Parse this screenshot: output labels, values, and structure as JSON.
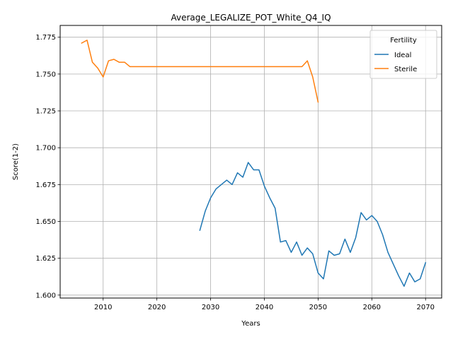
{
  "chart_data": {
    "type": "line",
    "title": "Average_LEGALIZE_POT_White_Q4_IQ",
    "xlabel": "Years",
    "ylabel": "Score(1-2)",
    "xlim": [
      2002,
      2073
    ],
    "ylim": [
      1.598,
      1.783
    ],
    "x_ticks": [
      2010,
      2020,
      2030,
      2040,
      2050,
      2060,
      2070
    ],
    "x_tick_labels": [
      "2010",
      "2020",
      "2030",
      "2040",
      "2050",
      "2060",
      "2070"
    ],
    "y_ticks": [
      1.6,
      1.625,
      1.65,
      1.675,
      1.7,
      1.725,
      1.75,
      1.775
    ],
    "y_tick_labels": [
      "1.600",
      "1.625",
      "1.650",
      "1.675",
      "1.700",
      "1.725",
      "1.750",
      "1.775"
    ],
    "grid": true,
    "legend": {
      "title": "Fertility",
      "placement": "top-right"
    },
    "series": [
      {
        "name": "Ideal",
        "color": "#1f77b4",
        "x": [
          2028,
          2029,
          2030,
          2031,
          2032,
          2033,
          2034,
          2035,
          2036,
          2037,
          2038,
          2039,
          2040,
          2041,
          2042,
          2043,
          2044,
          2045,
          2046,
          2047,
          2048,
          2049,
          2050,
          2051,
          2052,
          2053,
          2054,
          2055,
          2056,
          2057,
          2058,
          2059,
          2060,
          2061,
          2062,
          2063,
          2064,
          2065,
          2066,
          2067,
          2068,
          2069,
          2070
        ],
        "values": [
          1.644,
          1.657,
          1.666,
          1.672,
          1.675,
          1.678,
          1.675,
          1.683,
          1.68,
          1.69,
          1.685,
          1.685,
          1.674,
          1.666,
          1.659,
          1.636,
          1.637,
          1.629,
          1.636,
          1.627,
          1.632,
          1.628,
          1.615,
          1.611,
          1.63,
          1.627,
          1.628,
          1.638,
          1.629,
          1.639,
          1.656,
          1.651,
          1.654,
          1.65,
          1.641,
          1.629,
          1.621,
          1.613,
          1.606,
          1.615,
          1.609,
          1.611,
          1.622
        ]
      },
      {
        "name": "Sterile",
        "color": "#ff7f0e",
        "x": [
          2006,
          2007,
          2008,
          2009,
          2010,
          2011,
          2012,
          2013,
          2014,
          2015,
          2016,
          2017,
          2018,
          2019,
          2020,
          2021,
          2022,
          2023,
          2024,
          2025,
          2026,
          2027,
          2028,
          2029,
          2030,
          2031,
          2032,
          2033,
          2034,
          2035,
          2036,
          2037,
          2038,
          2039,
          2040,
          2041,
          2042,
          2043,
          2044,
          2045,
          2046,
          2047,
          2048,
          2049,
          2050
        ],
        "values": [
          1.771,
          1.773,
          1.758,
          1.754,
          1.748,
          1.759,
          1.76,
          1.758,
          1.758,
          1.755,
          1.755,
          1.755,
          1.755,
          1.755,
          1.755,
          1.755,
          1.755,
          1.755,
          1.755,
          1.755,
          1.755,
          1.755,
          1.755,
          1.755,
          1.755,
          1.755,
          1.755,
          1.755,
          1.755,
          1.755,
          1.755,
          1.755,
          1.755,
          1.755,
          1.755,
          1.755,
          1.755,
          1.755,
          1.755,
          1.755,
          1.755,
          1.755,
          1.759,
          1.748,
          1.731
        ]
      }
    ]
  }
}
